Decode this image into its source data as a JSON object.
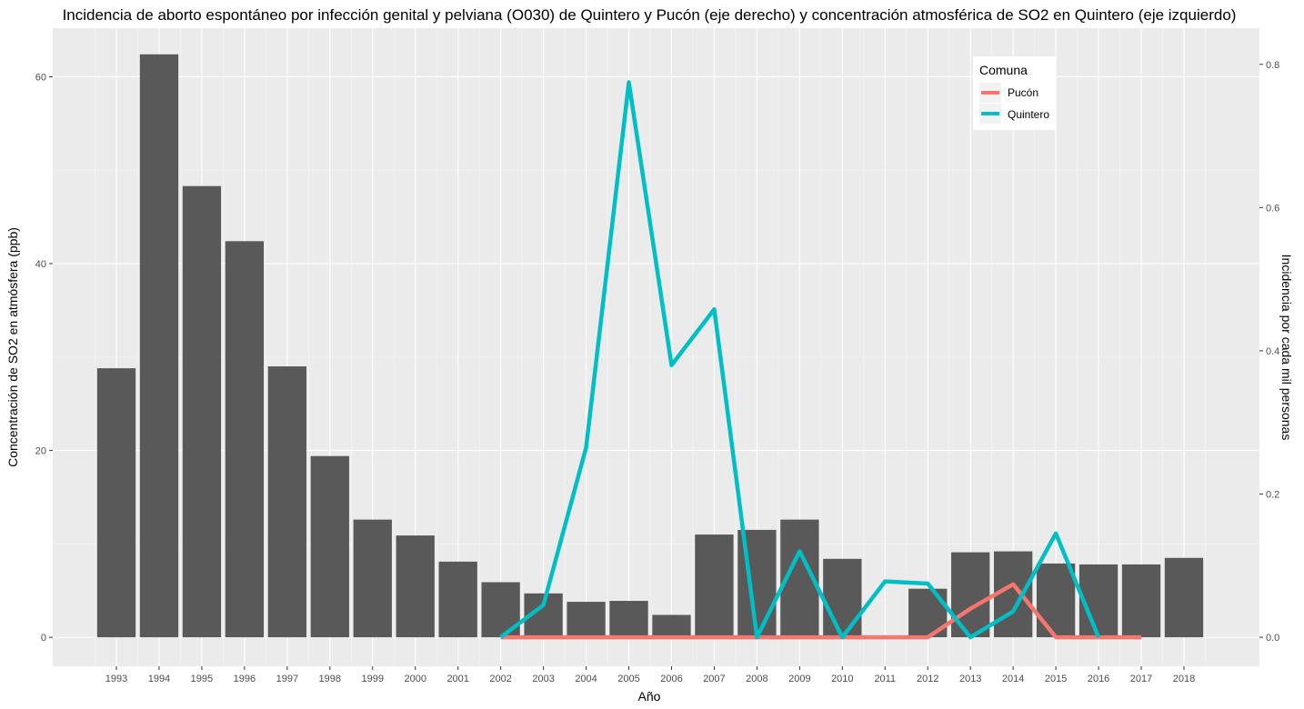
{
  "chart_data": {
    "type": "bar",
    "title": "Incidencia de aborto espontáneo por infección genital y pelviana (O030) de Quintero y Pucón (eje derecho) y concentración atmosférica de SO2 en Quintero (eje izquierdo)",
    "xlabel": "Año",
    "ylabel": "Concentración de SO2 en atmósfera (ppb)",
    "y2label": "Incidencia por cada mil personas",
    "categories": [
      "1993",
      "1994",
      "1995",
      "1996",
      "1997",
      "1998",
      "1999",
      "2000",
      "2001",
      "2002",
      "2003",
      "2004",
      "2005",
      "2006",
      "2007",
      "2008",
      "2009",
      "2010",
      "2011",
      "2012",
      "2013",
      "2014",
      "2015",
      "2016",
      "2017",
      "2018"
    ],
    "bars": {
      "color": "#595959",
      "values": [
        28.8,
        62.4,
        48.3,
        42.4,
        29.0,
        19.4,
        12.6,
        10.9,
        8.1,
        5.9,
        4.7,
        3.8,
        3.9,
        2.4,
        11.0,
        11.5,
        12.6,
        8.4,
        null,
        5.2,
        9.1,
        9.2,
        7.9,
        7.8,
        7.8,
        8.5
      ]
    },
    "ylim": [
      -3.1,
      65.2
    ],
    "y_ticks": [
      0,
      20,
      40,
      60
    ],
    "y2lim": [
      -0.0405,
      0.8505
    ],
    "y2_ticks": [
      "0.0",
      "0.2",
      "0.4",
      "0.6",
      "0.8"
    ],
    "grid": true,
    "legend": {
      "title": "Comuna",
      "position": "top-right",
      "entries": [
        {
          "label": "Pucón",
          "color": "#F8766D"
        },
        {
          "label": "Quintero",
          "color": "#00BFC4"
        }
      ]
    },
    "series": [
      {
        "name": "Pucón",
        "axis": "right",
        "color": "#F8766D",
        "x": [
          "2002",
          "2003",
          "2004",
          "2005",
          "2006",
          "2007",
          "2008",
          "2009",
          "2010",
          "2011",
          "2012",
          "2013",
          "2014",
          "2015",
          "2016",
          "2017"
        ],
        "values": [
          0,
          0,
          0,
          0,
          0,
          0,
          0,
          0,
          0,
          0,
          0,
          0.04,
          0.074,
          0,
          0,
          0
        ]
      },
      {
        "name": "Quintero",
        "axis": "right",
        "color": "#00BFC4",
        "x": [
          "2002",
          "2003",
          "2004",
          "2005",
          "2006",
          "2007",
          "2008",
          "2009",
          "2010",
          "2011",
          "2012",
          "2013",
          "2014",
          "2015",
          "2016"
        ],
        "values": [
          0,
          0.045,
          0.265,
          0.775,
          0.38,
          0.458,
          0,
          0.12,
          0,
          0.078,
          0.075,
          0,
          0.036,
          0.145,
          0
        ]
      }
    ]
  }
}
